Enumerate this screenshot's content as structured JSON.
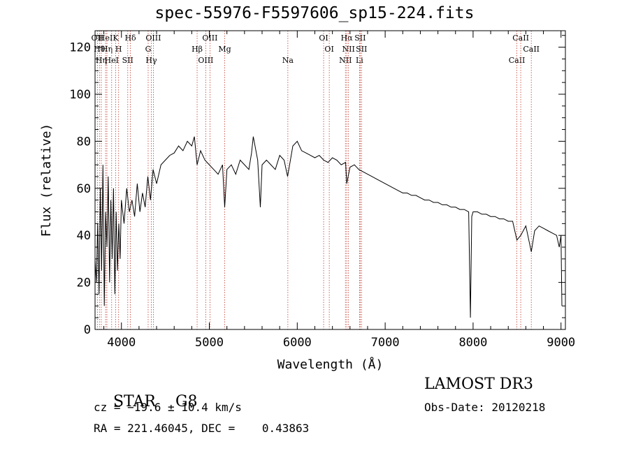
{
  "chart_data": {
    "type": "line",
    "title": "spec-55976-F5597606_sp15-224.fits",
    "xlabel": "Wavelength (Å)",
    "ylabel": "Flux (relative)",
    "xlim": [
      3700,
      9050
    ],
    "ylim": [
      0,
      127
    ],
    "xticks": [
      4000,
      5000,
      6000,
      7000,
      8000,
      9000
    ],
    "yticks": [
      0,
      20,
      40,
      60,
      80,
      100,
      120
    ],
    "series": [
      {
        "name": "flux",
        "x": [
          3700,
          3715,
          3730,
          3745,
          3760,
          3775,
          3790,
          3805,
          3820,
          3835,
          3850,
          3865,
          3880,
          3895,
          3910,
          3925,
          3940,
          3955,
          3970,
          3985,
          4000,
          4030,
          4060,
          4090,
          4120,
          4150,
          4180,
          4210,
          4240,
          4270,
          4300,
          4330,
          4360,
          4400,
          4450,
          4500,
          4550,
          4600,
          4650,
          4700,
          4750,
          4800,
          4830,
          4861,
          4900,
          4950,
          5000,
          5050,
          5100,
          5150,
          5175,
          5200,
          5250,
          5300,
          5350,
          5400,
          5450,
          5480,
          5500,
          5550,
          5580,
          5600,
          5650,
          5700,
          5750,
          5800,
          5850,
          5890,
          5950,
          6000,
          6050,
          6100,
          6150,
          6200,
          6250,
          6300,
          6350,
          6400,
          6450,
          6500,
          6550,
          6563,
          6600,
          6650,
          6700,
          6750,
          6800,
          6850,
          6900,
          6950,
          7000,
          7050,
          7100,
          7150,
          7200,
          7250,
          7300,
          7350,
          7400,
          7450,
          7500,
          7550,
          7600,
          7650,
          7700,
          7750,
          7800,
          7850,
          7900,
          7950,
          7970,
          7985,
          8000,
          8050,
          8100,
          8150,
          8200,
          8250,
          8300,
          8350,
          8400,
          8450,
          8498,
          8542,
          8600,
          8662,
          8700,
          8750,
          8800,
          8850,
          8900,
          8950,
          8980,
          9000,
          9010
        ],
        "y": [
          30,
          20,
          45,
          15,
          60,
          25,
          70,
          10,
          50,
          35,
          65,
          20,
          55,
          30,
          60,
          15,
          50,
          25,
          45,
          30,
          55,
          45,
          60,
          50,
          55,
          48,
          62,
          50,
          58,
          52,
          65,
          55,
          68,
          62,
          70,
          72,
          74,
          75,
          78,
          76,
          80,
          78,
          82,
          70,
          76,
          72,
          70,
          68,
          66,
          70,
          52,
          68,
          70,
          66,
          72,
          70,
          68,
          75,
          82,
          72,
          52,
          70,
          72,
          70,
          68,
          74,
          72,
          65,
          78,
          80,
          76,
          75,
          74,
          73,
          74,
          72,
          71,
          73,
          72,
          70,
          71,
          62,
          69,
          70,
          68,
          67,
          66,
          65,
          64,
          63,
          62,
          61,
          60,
          59,
          58,
          58,
          57,
          57,
          56,
          55,
          55,
          54,
          54,
          53,
          53,
          52,
          52,
          51,
          51,
          50,
          5,
          48,
          50,
          50,
          49,
          49,
          48,
          48,
          47,
          47,
          46,
          46,
          38,
          40,
          44,
          33,
          42,
          44,
          43,
          42,
          41,
          40,
          35,
          40,
          10
        ]
      }
    ],
    "lines": [
      {
        "x": 3727,
        "label": "OII"
      },
      {
        "x": 3750,
        "label": "Hθ"
      },
      {
        "x": 3771,
        "label": "Hη"
      },
      {
        "x": 3820,
        "label": "HeI"
      },
      {
        "x": 3835,
        "label": "Hη"
      },
      {
        "x": 3889,
        "label": "HeI"
      },
      {
        "x": 3934,
        "label": "K"
      },
      {
        "x": 3968,
        "label": "H"
      },
      {
        "x": 4072,
        "label": "SII"
      },
      {
        "x": 4102,
        "label": "Hδ"
      },
      {
        "x": 4304,
        "label": "G"
      },
      {
        "x": 4340,
        "label": "Hγ"
      },
      {
        "x": 4363,
        "label": "OIII"
      },
      {
        "x": 4861,
        "label": "Hβ"
      },
      {
        "x": 4959,
        "label": "OIII"
      },
      {
        "x": 5007,
        "label": "OIII"
      },
      {
        "x": 5175,
        "label": "Mg"
      },
      {
        "x": 5893,
        "label": "Na"
      },
      {
        "x": 6300,
        "label": "OI"
      },
      {
        "x": 6364,
        "label": "OI"
      },
      {
        "x": 6548,
        "label": "NII"
      },
      {
        "x": 6563,
        "label": "Hα"
      },
      {
        "x": 6583,
        "label": "NII"
      },
      {
        "x": 6708,
        "label": "Li"
      },
      {
        "x": 6716,
        "label": "SII"
      },
      {
        "x": 6731,
        "label": "SII"
      },
      {
        "x": 8498,
        "label": "CaII"
      },
      {
        "x": 8542,
        "label": "CaII"
      },
      {
        "x": 8662,
        "label": "CaII"
      }
    ]
  },
  "info": {
    "class": "STAR",
    "subclass": "G8",
    "survey": "LAMOST DR3",
    "cz": "cz = −19.6 ± 10.4 km/s",
    "obs_date": "Obs-Date: 20120218",
    "coords": "RA = 221.46045, DEC =    0.43863"
  },
  "colors": {
    "line_marker": "#c0392b",
    "spectrum": "#000000",
    "axes": "#000000"
  }
}
